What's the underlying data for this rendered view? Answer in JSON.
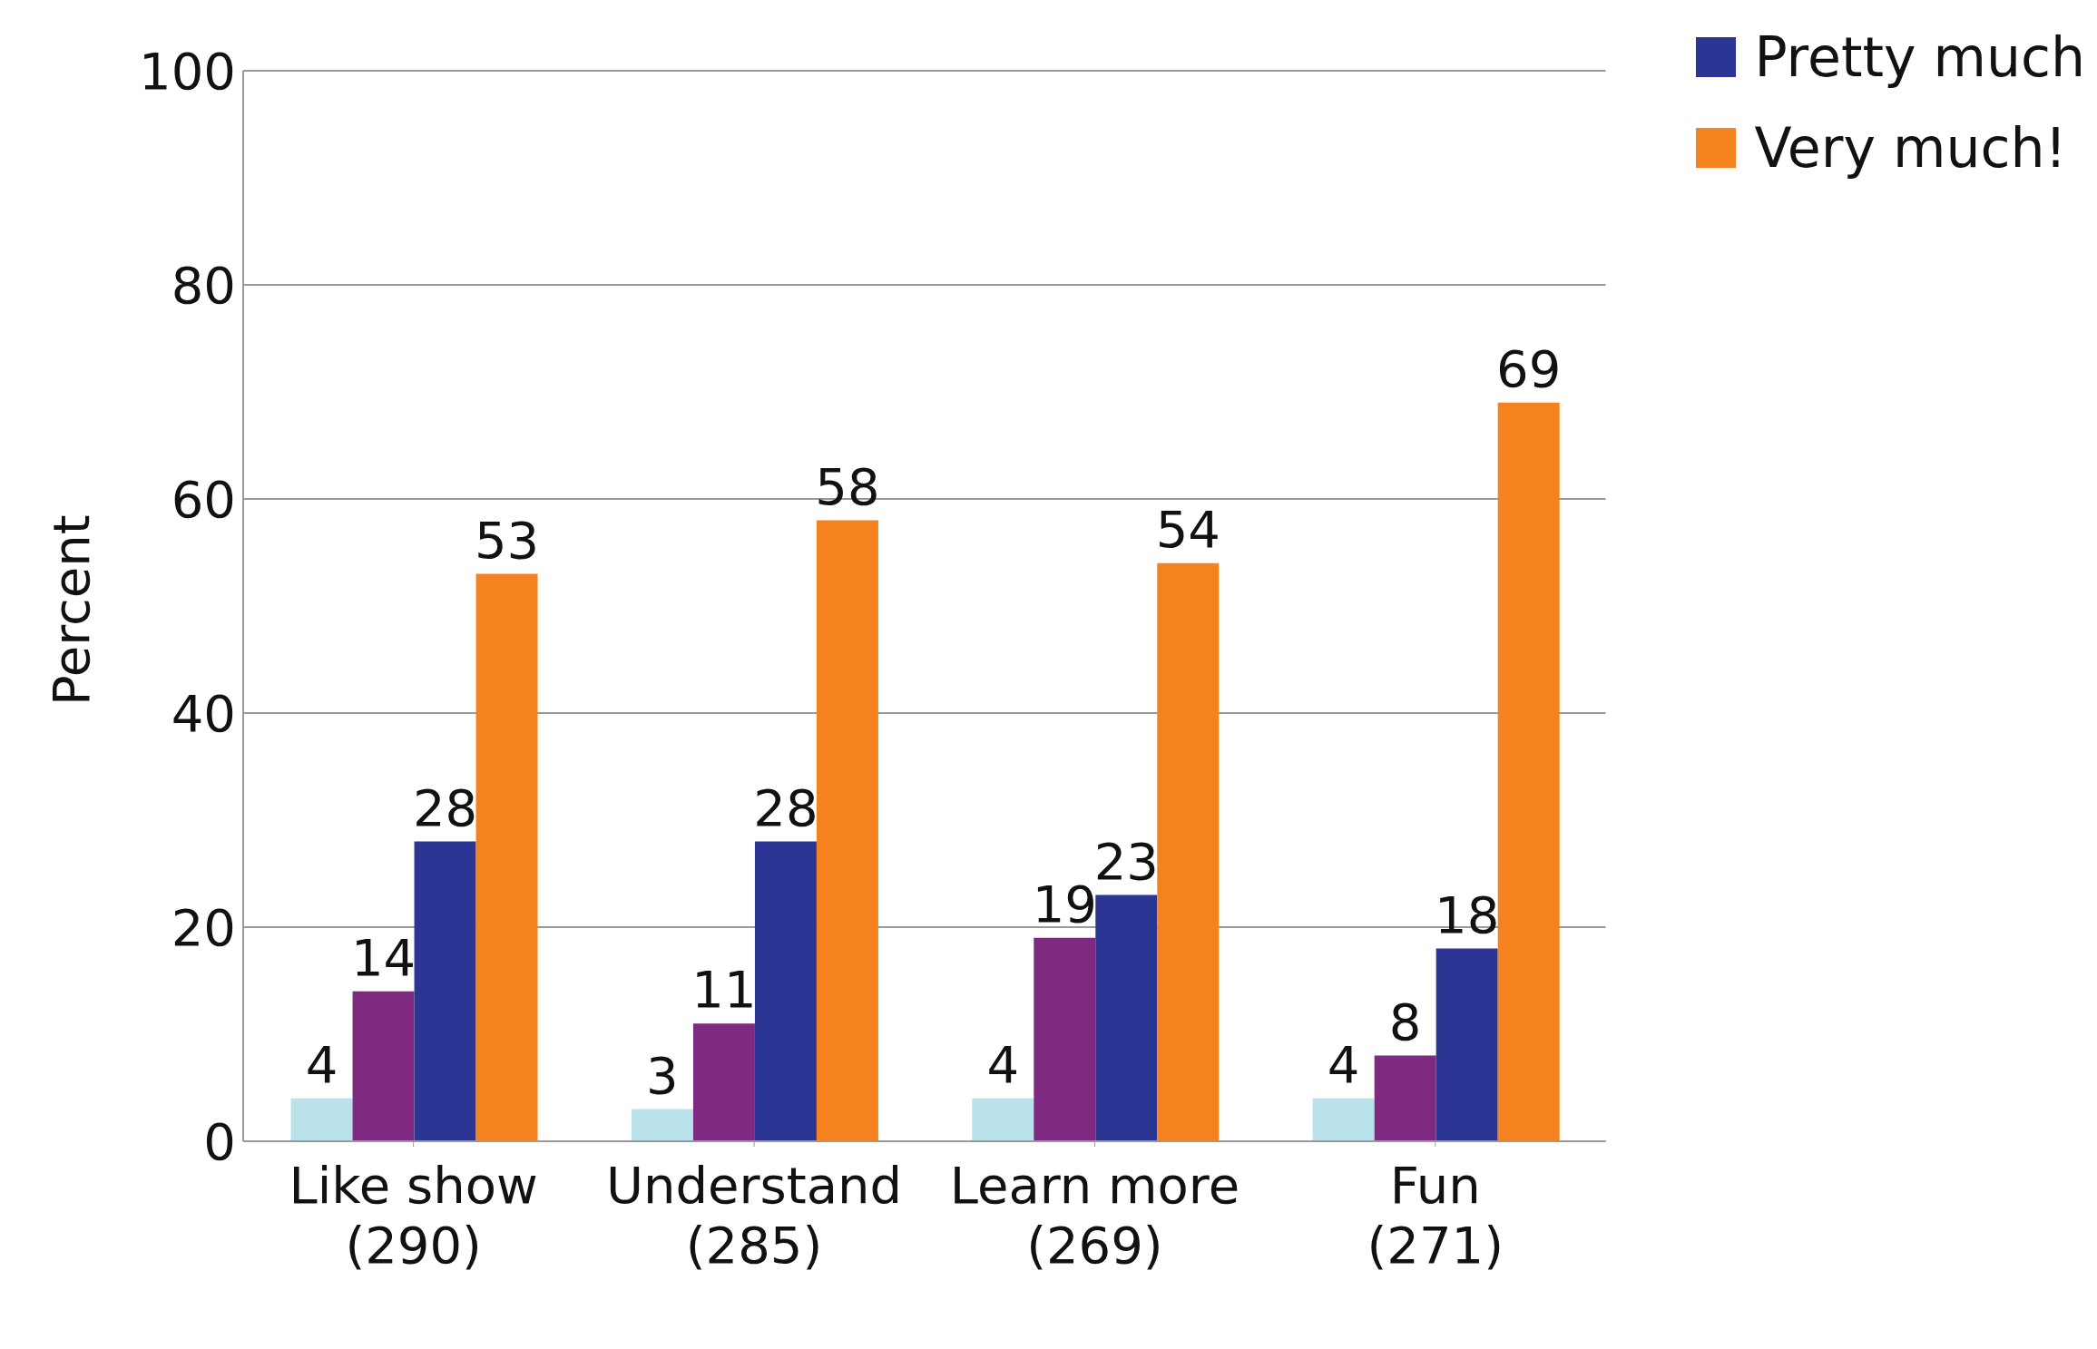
{
  "chart_data": {
    "type": "bar",
    "ylabel": "Percent",
    "categories": [
      "Like show\n(290)",
      "Understand\n(285)",
      "Learn more\n(269)",
      "Fun\n(271)"
    ],
    "series": [
      {
        "color": "#b9e2ea",
        "values": [
          4,
          3,
          4,
          4
        ]
      },
      {
        "color": "#7e2a80",
        "values": [
          14,
          11,
          19,
          8
        ]
      },
      {
        "name": "Pretty much",
        "color": "#2b3593",
        "values": [
          28,
          28,
          23,
          18
        ]
      },
      {
        "name": "Very much!",
        "color": "#f5821f",
        "values": [
          53,
          58,
          54,
          69
        ]
      }
    ],
    "ylim": [
      0,
      100
    ],
    "yticks": [
      0,
      20,
      40,
      60,
      80,
      100
    ],
    "grid": "y",
    "legend": "top right",
    "data_labels": true
  }
}
